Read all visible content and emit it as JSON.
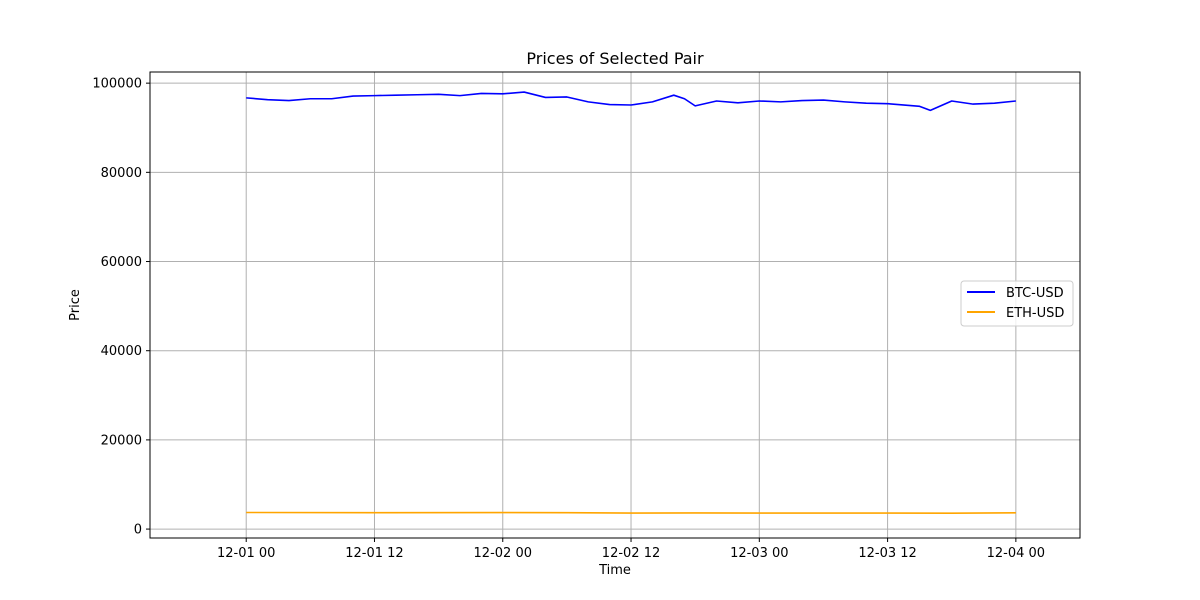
{
  "chart_data": {
    "type": "line",
    "title": "Prices of Selected Pair",
    "xlabel": "Time",
    "ylabel": "Price",
    "xlim": [
      "2024-11-30T15:00",
      "2024-12-04T06:00"
    ],
    "ylim": [
      -2000,
      102500
    ],
    "yticks": [
      0,
      20000,
      40000,
      60000,
      80000,
      100000
    ],
    "xticks": [
      {
        "t": "2024-12-01T00:00",
        "label": "12-01 00"
      },
      {
        "t": "2024-12-01T12:00",
        "label": "12-01 12"
      },
      {
        "t": "2024-12-02T00:00",
        "label": "12-02 00"
      },
      {
        "t": "2024-12-02T12:00",
        "label": "12-02 12"
      },
      {
        "t": "2024-12-03T00:00",
        "label": "12-03 00"
      },
      {
        "t": "2024-12-03T12:00",
        "label": "12-03 12"
      },
      {
        "t": "2024-12-04T00:00",
        "label": "12-04 00"
      }
    ],
    "grid": true,
    "legend_position": "center-right",
    "series": [
      {
        "name": "BTC-USD",
        "color": "#0000ff",
        "x": [
          "2024-12-01T00:00",
          "2024-12-01T02:00",
          "2024-12-01T04:00",
          "2024-12-01T06:00",
          "2024-12-01T08:00",
          "2024-12-01T10:00",
          "2024-12-01T12:00",
          "2024-12-01T14:00",
          "2024-12-01T16:00",
          "2024-12-01T18:00",
          "2024-12-01T20:00",
          "2024-12-01T22:00",
          "2024-12-02T00:00",
          "2024-12-02T02:00",
          "2024-12-02T04:00",
          "2024-12-02T06:00",
          "2024-12-02T08:00",
          "2024-12-02T10:00",
          "2024-12-02T12:00",
          "2024-12-02T14:00",
          "2024-12-02T16:00",
          "2024-12-02T17:00",
          "2024-12-02T18:00",
          "2024-12-02T20:00",
          "2024-12-02T22:00",
          "2024-12-03T00:00",
          "2024-12-03T02:00",
          "2024-12-03T04:00",
          "2024-12-03T06:00",
          "2024-12-03T08:00",
          "2024-12-03T10:00",
          "2024-12-03T12:00",
          "2024-12-03T14:00",
          "2024-12-03T15:00",
          "2024-12-03T16:00",
          "2024-12-03T18:00",
          "2024-12-03T20:00",
          "2024-12-03T22:00",
          "2024-12-04T00:00"
        ],
        "values": [
          96700,
          96300,
          96100,
          96500,
          96500,
          97100,
          97200,
          97300,
          97400,
          97500,
          97200,
          97700,
          97600,
          98000,
          96800,
          96900,
          95800,
          95200,
          95100,
          95800,
          97300,
          96500,
          94900,
          96000,
          95600,
          96000,
          95800,
          96100,
          96200,
          95800,
          95500,
          95400,
          95000,
          94800,
          93900,
          96000,
          95300,
          95500,
          96000
        ]
      },
      {
        "name": "ETH-USD",
        "color": "#ffa500",
        "x": [
          "2024-12-01T00:00",
          "2024-12-01T12:00",
          "2024-12-02T00:00",
          "2024-12-02T06:00",
          "2024-12-02T12:00",
          "2024-12-02T18:00",
          "2024-12-03T00:00",
          "2024-12-03T12:00",
          "2024-12-03T18:00",
          "2024-12-04T00:00"
        ],
        "values": [
          3720,
          3680,
          3710,
          3680,
          3600,
          3620,
          3590,
          3600,
          3570,
          3650
        ]
      }
    ]
  }
}
